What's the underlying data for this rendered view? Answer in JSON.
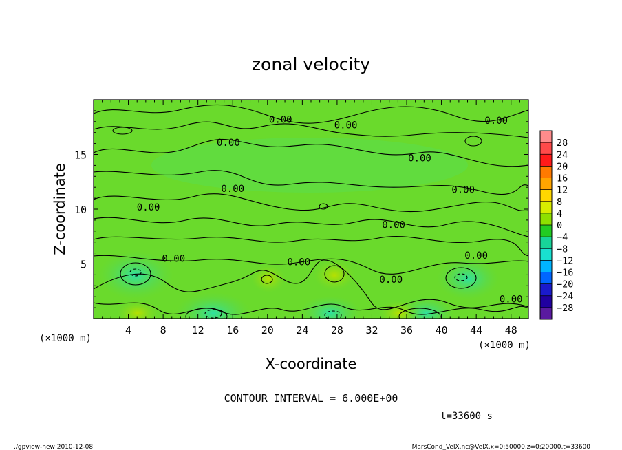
{
  "chart_data": {
    "type": "heatmap",
    "title": "zonal velocity",
    "xlabel": "X-coordinate",
    "ylabel": "Z-coordinate",
    "x_unit_left": "(×1000 m)",
    "x_unit_right": "(×1000 m)",
    "xlim": [
      0,
      50
    ],
    "ylim": [
      0,
      20
    ],
    "x_ticks": [
      4,
      8,
      12,
      16,
      20,
      24,
      28,
      32,
      36,
      40,
      44,
      48
    ],
    "y_ticks": [
      5,
      10,
      15
    ],
    "colorbar": {
      "labels": [
        "28",
        "24",
        "20",
        "16",
        "12",
        "8",
        "4",
        "0",
        "−4",
        "−8",
        "−12",
        "−16",
        "−20",
        "−24",
        "−28"
      ],
      "colors": [
        "#ff8c8c",
        "#ff4a4a",
        "#ff1a1a",
        "#ff7a00",
        "#ffa500",
        "#ffd700",
        "#d8ec00",
        "#8ee000",
        "#22cc22",
        "#18d49a",
        "#19e0d0",
        "#00b4ff",
        "#0066ff",
        "#1a1acc",
        "#2000a0",
        "#5a1aa0"
      ]
    },
    "contour_labels": [
      {
        "text": "0.00",
        "x": 21.5,
        "z": 18.2
      },
      {
        "text": "0.00",
        "x": 29.0,
        "z": 17.7
      },
      {
        "text": "0.00",
        "x": 46.3,
        "z": 18.1
      },
      {
        "text": "0.00",
        "x": 15.5,
        "z": 16.1
      },
      {
        "text": "0.00",
        "x": 37.5,
        "z": 14.7
      },
      {
        "text": "0.00",
        "x": 16.0,
        "z": 11.9
      },
      {
        "text": "0.00",
        "x": 42.5,
        "z": 11.8
      },
      {
        "text": "0.00",
        "x": 6.3,
        "z": 10.2
      },
      {
        "text": "0.00",
        "x": 34.5,
        "z": 8.6
      },
      {
        "text": "0.00",
        "x": 9.2,
        "z": 5.5
      },
      {
        "text": "0.00",
        "x": 23.6,
        "z": 5.2
      },
      {
        "text": "0.00",
        "x": 44.0,
        "z": 5.8
      },
      {
        "text": "0.00",
        "x": 34.2,
        "z": 3.6
      },
      {
        "text": "0.00",
        "x": 48.0,
        "z": 1.8
      }
    ],
    "contour_interval_text": "CONTOUR INTERVAL = 6.000E+00",
    "time_text": "t=33600 s"
  },
  "footer": {
    "left": "./gpview-new   2010-12-08",
    "right": "MarsCond_VelX.nc@VelX,x=0:50000,z=0:20000,t=33600"
  }
}
